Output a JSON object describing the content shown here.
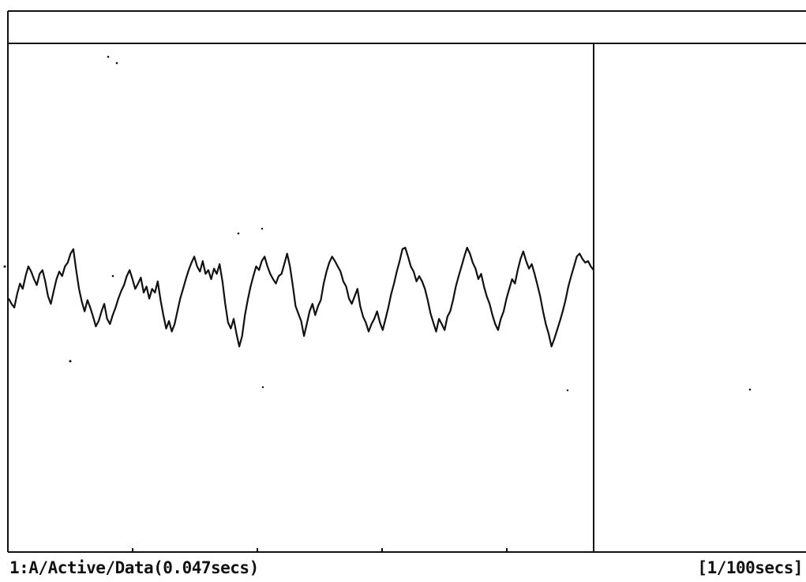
{
  "status": {
    "channel_info": "1:A/Active/Data(0.047secs)",
    "timebase": "[1/100secs]"
  },
  "colors": {
    "background": "#ffffff",
    "ink": "#111111"
  },
  "waveform": {
    "trace_type": "line",
    "cursor_after_sample": true,
    "y_range": [
      -1,
      1
    ],
    "samples": [
      0.12,
      0.05,
      0.0,
      0.18,
      0.32,
      0.25,
      0.42,
      0.55,
      0.48,
      0.38,
      0.3,
      0.45,
      0.5,
      0.35,
      0.15,
      0.05,
      0.22,
      0.38,
      0.48,
      0.42,
      0.55,
      0.6,
      0.72,
      0.78,
      0.5,
      0.25,
      0.08,
      -0.05,
      0.1,
      0.0,
      -0.12,
      -0.25,
      -0.18,
      -0.05,
      0.05,
      -0.15,
      -0.22,
      -0.1,
      0.0,
      0.12,
      0.22,
      0.3,
      0.42,
      0.5,
      0.38,
      0.25,
      0.32,
      0.4,
      0.2,
      0.28,
      0.12,
      0.25,
      0.2,
      0.35,
      0.1,
      -0.1,
      -0.28,
      -0.18,
      -0.32,
      -0.22,
      -0.05,
      0.12,
      0.25,
      0.38,
      0.5,
      0.6,
      0.68,
      0.55,
      0.48,
      0.62,
      0.45,
      0.5,
      0.38,
      0.52,
      0.45,
      0.58,
      0.35,
      0.05,
      -0.2,
      -0.28,
      -0.15,
      -0.35,
      -0.52,
      -0.38,
      -0.1,
      0.1,
      0.28,
      0.42,
      0.55,
      0.5,
      0.62,
      0.68,
      0.55,
      0.45,
      0.38,
      0.32,
      0.42,
      0.45,
      0.58,
      0.72,
      0.55,
      0.3,
      0.02,
      -0.08,
      -0.18,
      -0.38,
      -0.22,
      -0.05,
      0.05,
      -0.1,
      0.02,
      0.1,
      0.32,
      0.48,
      0.6,
      0.68,
      0.62,
      0.55,
      0.48,
      0.35,
      0.28,
      0.12,
      0.05,
      0.15,
      0.25,
      0.02,
      -0.12,
      -0.2,
      -0.32,
      -0.22,
      -0.15,
      -0.05,
      -0.2,
      -0.3,
      -0.15,
      0.0,
      0.18,
      0.32,
      0.48,
      0.62,
      0.78,
      0.8,
      0.68,
      0.55,
      0.48,
      0.35,
      0.42,
      0.35,
      0.25,
      0.1,
      -0.08,
      -0.2,
      -0.32,
      -0.15,
      -0.22,
      -0.3,
      -0.12,
      -0.05,
      0.1,
      0.28,
      0.42,
      0.55,
      0.68,
      0.8,
      0.72,
      0.6,
      0.52,
      0.38,
      0.45,
      0.28,
      0.15,
      0.05,
      -0.1,
      -0.22,
      -0.3,
      -0.15,
      -0.05,
      0.12,
      0.25,
      0.38,
      0.32,
      0.5,
      0.65,
      0.75,
      0.62,
      0.52,
      0.58,
      0.45,
      0.3,
      0.15,
      -0.05,
      -0.22,
      -0.35,
      -0.52,
      -0.42,
      -0.3,
      -0.18,
      -0.05,
      0.1,
      0.28,
      0.42,
      0.55,
      0.68,
      0.72,
      0.65,
      0.6,
      0.62,
      0.55,
      0.5
    ]
  }
}
